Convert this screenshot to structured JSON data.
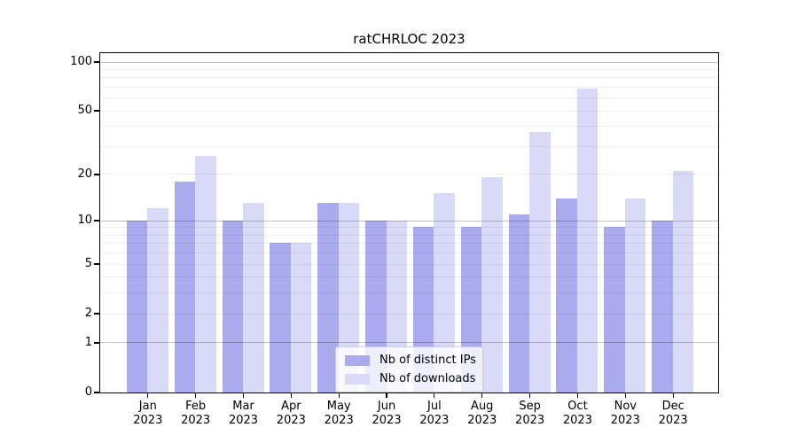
{
  "title": "ratCHRLOC 2023",
  "chart_data": {
    "type": "bar",
    "title": "ratCHRLOC 2023",
    "categories": [
      "Jan",
      "Feb",
      "Mar",
      "Apr",
      "May",
      "Jun",
      "Jul",
      "Aug",
      "Sep",
      "Oct",
      "Nov",
      "Dec"
    ],
    "year_label": "2023",
    "series": [
      {
        "name": "Nb of distinct IPs",
        "color": "#aaaaee",
        "values": [
          10,
          18,
          10,
          7,
          13,
          10,
          9,
          9,
          11,
          14,
          9,
          10
        ]
      },
      {
        "name": "Nb of downloads",
        "color": "#d9d9f8",
        "values": [
          12,
          26,
          13,
          7,
          13,
          10,
          15,
          19,
          37,
          68,
          14,
          21
        ]
      }
    ],
    "yscale": "log1p",
    "ylim": [
      0,
      113
    ],
    "y_tick_values": [
      100,
      50,
      20,
      10,
      5,
      2,
      1,
      0
    ],
    "y_major_gridlines": [
      1,
      10,
      100
    ],
    "y_minor_gridlines": [
      2,
      3,
      4,
      5,
      6,
      7,
      8,
      9,
      20,
      30,
      40,
      50,
      60,
      70,
      80,
      90
    ],
    "legend_position": "bottom-center",
    "grid": true
  },
  "colors": {
    "bar_distinct_ips": "#aaaaee",
    "bar_downloads": "#d9d9f8",
    "axis": "#000000",
    "major_grid": "rgba(0,0,0,0.24)",
    "minor_grid": "rgba(0,0,0,0.07)"
  }
}
